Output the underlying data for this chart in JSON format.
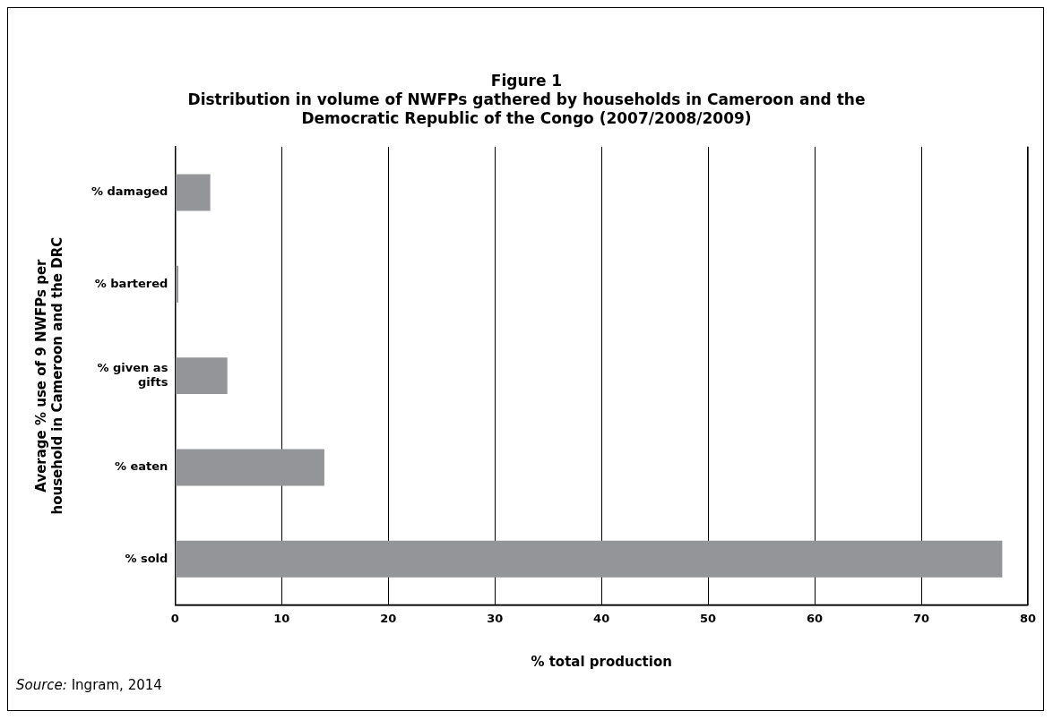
{
  "chart_data": {
    "type": "bar",
    "orientation": "horizontal",
    "title": "Figure 1",
    "subtitle": "Distribution in volume of NWFPs gathered by households in Cameroon and the Democratic Republic of the Congo (2007/2008/2009)",
    "categories": [
      "% damaged",
      "% bartered",
      "% given as gifts",
      "% eaten",
      "% sold"
    ],
    "values": [
      3.3,
      0.3,
      4.9,
      14.0,
      77.6
    ],
    "color": "#939598",
    "xlim": [
      0,
      80
    ],
    "xticks": [
      0,
      10,
      20,
      30,
      40,
      50,
      60,
      70,
      80
    ],
    "xlabel": "% total production",
    "ylabel": "Average % use of 9 NWFPs per household in Cameroon and the DRC",
    "grid": "x",
    "legend": false,
    "annotations": [
      "Source: Ingram, 2014"
    ]
  }
}
